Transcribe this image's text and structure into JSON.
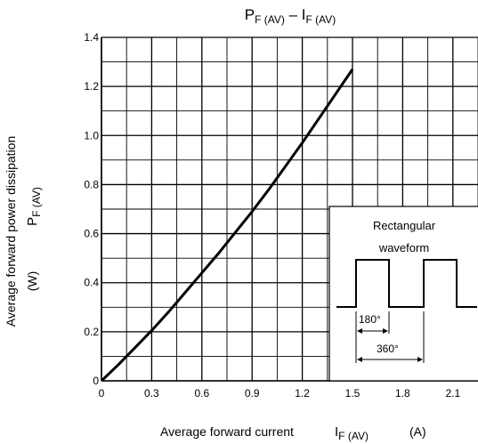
{
  "chart_data": {
    "type": "line",
    "title_main": "P",
    "title_main_sub": "F (AV)",
    "title_dash": " – I",
    "title_dash_sub": "F (AV)",
    "xlabel": "Average forward current",
    "xlabel_symbol": "I",
    "xlabel_symbol_sub": "F (AV)",
    "xlabel_unit": "(A)",
    "ylabel_line1": "Average forward power dissipation",
    "ylabel_symbol": "P",
    "ylabel_symbol_sub": "F (AV)",
    "ylabel_unit": "(W)",
    "xlim": [
      0,
      2.25
    ],
    "ylim": [
      0,
      1.4
    ],
    "x_ticks": [
      "0",
      "0.3",
      "0.6",
      "0.9",
      "1.2",
      "1.5",
      "1.8",
      "2.1"
    ],
    "x_tick_values": [
      0,
      0.3,
      0.6,
      0.9,
      1.2,
      1.5,
      1.8,
      2.1
    ],
    "y_ticks": [
      "0",
      "0.2",
      "0.4",
      "0.6",
      "0.8",
      "1.0",
      "1.2",
      "1.4"
    ],
    "y_tick_values": [
      0,
      0.2,
      0.4,
      0.6,
      0.8,
      1.0,
      1.2,
      1.4
    ],
    "grid": true,
    "series": [
      {
        "x": [
          0,
          0.1,
          0.2,
          0.3,
          0.4,
          0.5,
          0.6,
          0.7,
          0.8,
          0.9,
          1.0,
          1.1,
          1.2,
          1.3,
          1.4,
          1.5
        ],
        "y": [
          0,
          0.065,
          0.135,
          0.205,
          0.28,
          0.36,
          0.44,
          0.52,
          0.605,
          0.69,
          0.78,
          0.875,
          0.97,
          1.07,
          1.17,
          1.27
        ],
        "color": "#000000"
      }
    ],
    "inset": {
      "title_line1": "Rectangular",
      "title_line2": "waveform",
      "label_180": "180°",
      "label_360": "360°"
    }
  }
}
